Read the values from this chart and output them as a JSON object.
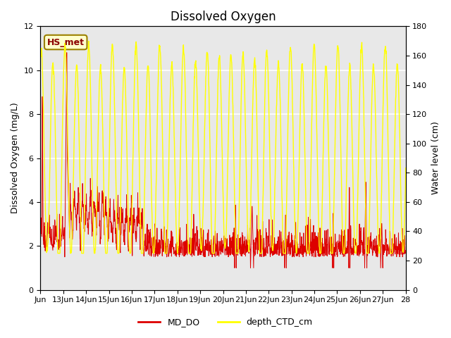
{
  "title": "Dissolved Oxygen",
  "ylabel_left": "Dissolved Oxygen (mg/L)",
  "ylabel_right": "Water level (cm)",
  "xlabel": "",
  "ylim_left": [
    0,
    12
  ],
  "ylim_right": [
    0,
    180
  ],
  "xlim": [
    0,
    16
  ],
  "xtick_labels": [
    "Jun",
    "13Jun",
    "14Jun",
    "15Jun",
    "16Jun",
    "17Jun",
    "18Jun",
    "19Jun",
    "20Jun",
    "21Jun",
    "22Jun",
    "23Jun",
    "24Jun",
    "25Jun",
    "26Jun",
    "27Jun",
    "28"
  ],
  "xtick_positions": [
    0,
    1,
    2,
    3,
    4,
    5,
    6,
    7,
    8,
    9,
    10,
    11,
    12,
    13,
    14,
    15,
    16
  ],
  "yticks_left": [
    0,
    2,
    4,
    6,
    8,
    10,
    12
  ],
  "yticks_right": [
    0,
    20,
    40,
    60,
    80,
    100,
    120,
    140,
    160,
    180
  ],
  "color_do": "#dd0000",
  "color_depth": "#ffff00",
  "legend_label_do": "MD_DO",
  "legend_label_depth": "depth_CTD_cm",
  "annotation_text": "HS_met",
  "annotation_color": "#8b0000",
  "annotation_bg": "#ffffcc",
  "annotation_border": "#9b8000",
  "bg_color_inner": "#e8e8e8",
  "bg_color_fig": "#ffffff",
  "grid_color": "#ffffff",
  "title_fontsize": 12,
  "label_fontsize": 9,
  "tick_fontsize": 8
}
